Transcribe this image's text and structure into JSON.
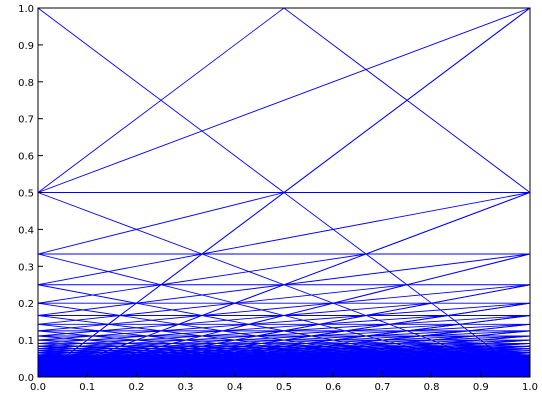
{
  "chart_data": {
    "type": "line",
    "title": "",
    "xlabel": "",
    "ylabel": "",
    "xlim": [
      0.0,
      1.0
    ],
    "ylim": [
      0.0,
      1.0
    ],
    "grid": false,
    "legend": "none",
    "x_ticks": [
      "0.0",
      "0.1",
      "0.2",
      "0.3",
      "0.4",
      "0.5",
      "0.6",
      "0.7",
      "0.8",
      "0.9",
      "1.0"
    ],
    "y_ticks": [
      "0.0",
      "0.1",
      "0.2",
      "0.3",
      "0.4",
      "0.5",
      "0.6",
      "0.7",
      "0.8",
      "0.9",
      "1.0"
    ],
    "construction": "polylines through points (k/n, 1/n) for n = 1..N",
    "n_min": 1,
    "n_max": 60,
    "series": [
      {
        "color": "#0000ff"
      }
    ],
    "colors": {
      "line": "#0000ff",
      "axis": "#000000",
      "background": "#ffffff"
    }
  }
}
